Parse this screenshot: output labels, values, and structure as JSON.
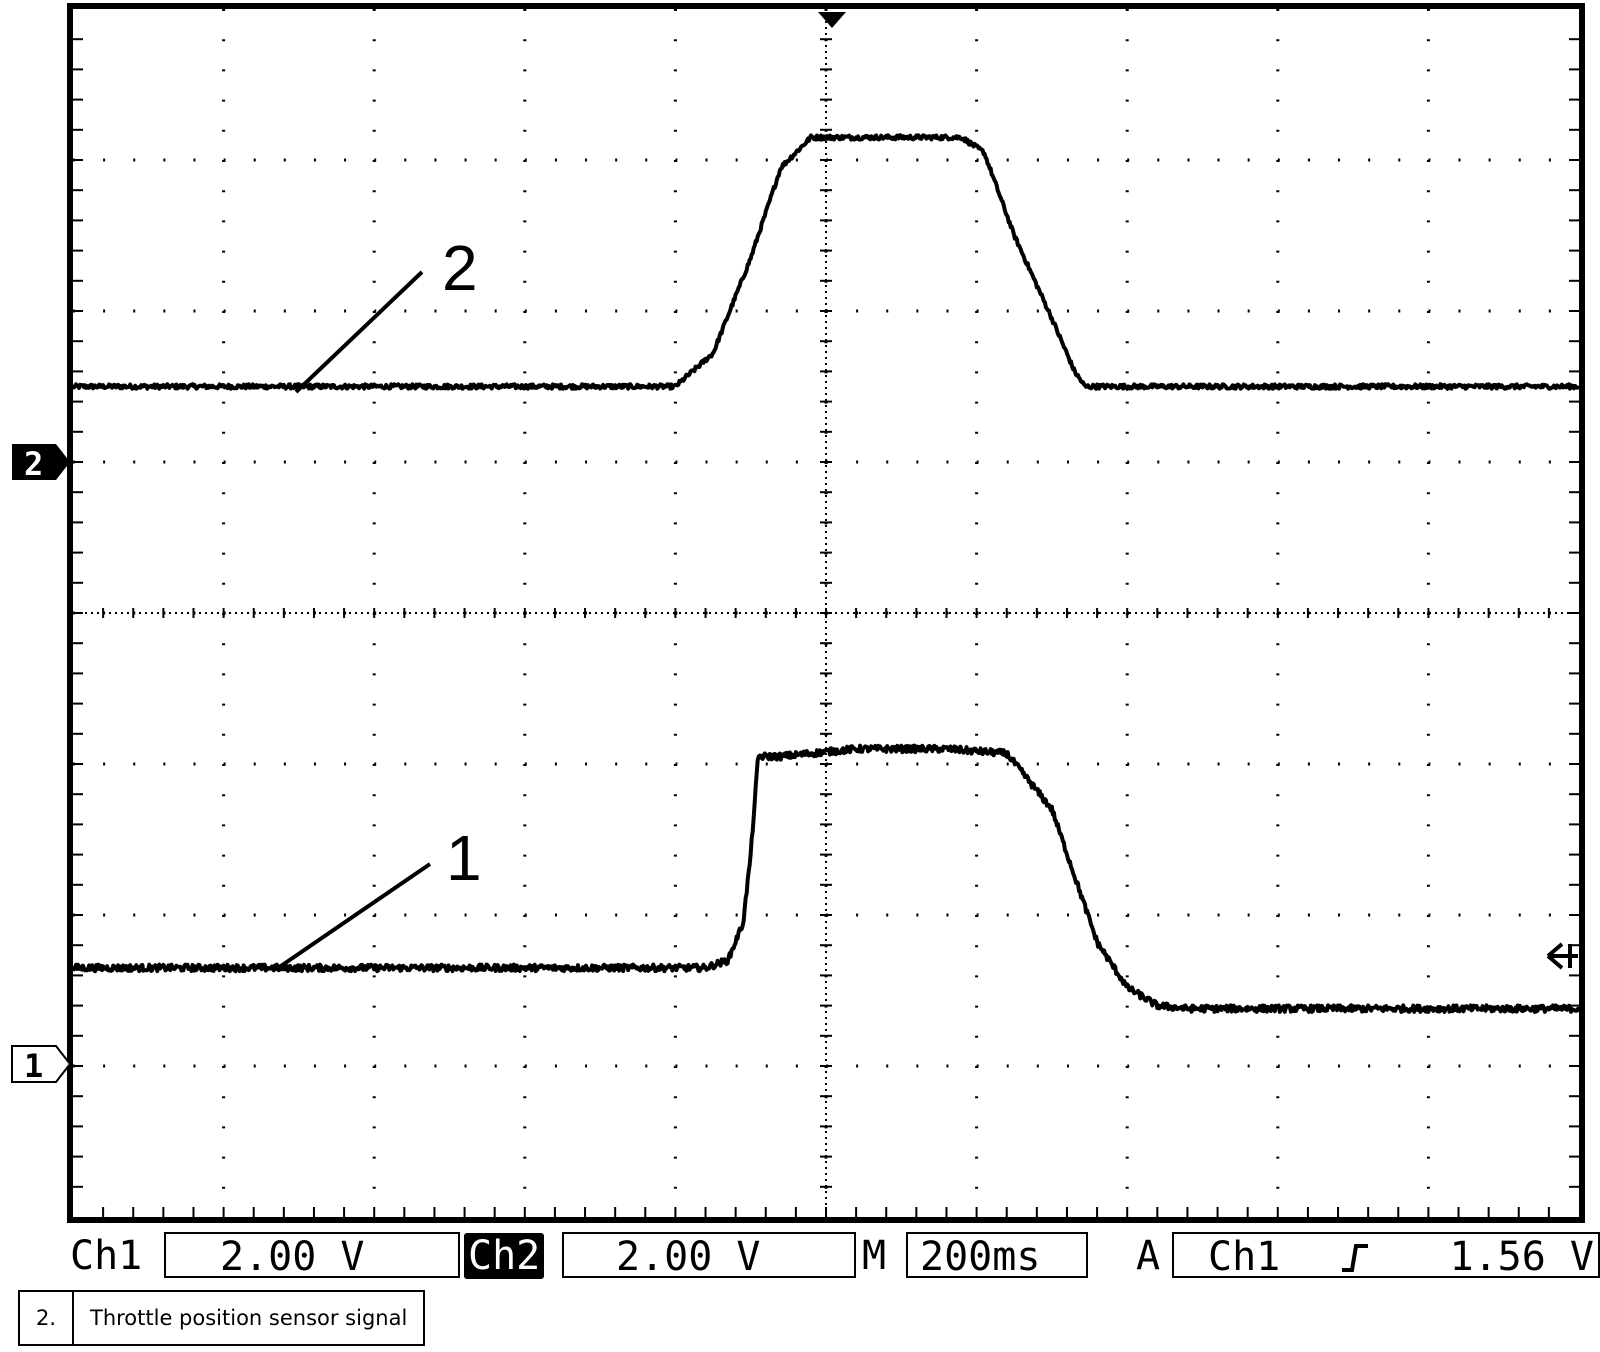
{
  "chart_data": {
    "type": "line",
    "title": "",
    "xlabel": "",
    "ylabel": "",
    "grid": true,
    "grid_divisions": {
      "x": 10,
      "y": 8
    },
    "x_range_div": [
      0,
      10
    ],
    "y_range_div": [
      -4,
      4
    ],
    "trigger_marker_x_div": 5,
    "series": [
      {
        "callout": "2",
        "ground_marker": "2",
        "ground_div": 1,
        "noise_div": 0.015,
        "x_div": [
          0,
          4.0,
          4.25,
          4.5,
          4.7,
          4.9,
          5.2,
          5.9,
          6.05,
          6.25,
          6.5,
          6.65,
          6.72,
          10
        ],
        "y_div": [
          1.5,
          1.5,
          1.72,
          2.35,
          2.95,
          3.15,
          3.15,
          3.15,
          3.05,
          2.5,
          1.95,
          1.6,
          1.5,
          1.5
        ]
      },
      {
        "callout": "1",
        "ground_marker": "1",
        "ground_div": -3,
        "noise_div": 0.022,
        "x_div": [
          0,
          4.2,
          4.35,
          4.45,
          4.5,
          4.55,
          4.7,
          5.2,
          5.8,
          6.2,
          6.5,
          6.8,
          7.0,
          7.2,
          7.4,
          7.6,
          10
        ],
        "y_div": [
          -2.35,
          -2.35,
          -2.3,
          -2.05,
          -1.6,
          -0.95,
          -0.95,
          -0.9,
          -0.9,
          -0.93,
          -1.3,
          -2.18,
          -2.48,
          -2.6,
          -2.62,
          -2.62,
          -2.62
        ]
      }
    ]
  },
  "status_bar": {
    "ch1_label": "Ch1",
    "ch1_scale": "2.00 V",
    "ch2_label": "Ch2",
    "ch2_scale": "2.00 V",
    "time_label": "M",
    "time_scale": "200ms",
    "trigger_label": "A",
    "trigger_source": "Ch1",
    "trigger_level": "1.56 V"
  },
  "legend": {
    "number": "2.",
    "text": "Throttle position sensor signal"
  }
}
